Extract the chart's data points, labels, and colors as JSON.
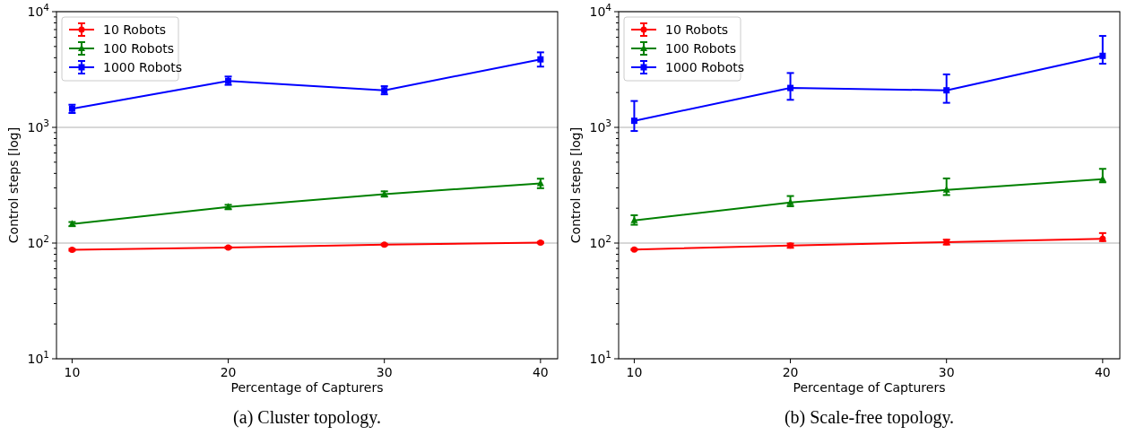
{
  "chart_data": [
    {
      "type": "line",
      "xlabel": "Percentage of Capturers",
      "ylabel": "Control steps [log]",
      "annotations": [
        "(a) Cluster topology."
      ],
      "x": [
        10,
        20,
        30,
        40
      ],
      "xlim": [
        9,
        41.1
      ],
      "xticks": [
        10,
        20,
        30,
        40
      ],
      "ylim": [
        10,
        10000
      ],
      "log": true,
      "grid": "y",
      "legend": "top left",
      "line_style": "solid",
      "yticks": [
        {
          "value": 10,
          "label": "10$^{1}$"
        },
        {
          "value": 20,
          "label": null
        },
        {
          "value": 30,
          "label": null
        },
        {
          "value": 40,
          "label": null
        },
        {
          "value": 50,
          "label": null
        },
        {
          "value": 60,
          "label": null
        },
        {
          "value": 70,
          "label": null
        },
        {
          "value": 80,
          "label": null
        },
        {
          "value": 90,
          "label": null
        },
        {
          "value": 100,
          "label": "10$^{2}$"
        },
        {
          "value": 200,
          "label": null
        },
        {
          "value": 300,
          "label": null
        },
        {
          "value": 400,
          "label": null
        },
        {
          "value": 500,
          "label": null
        },
        {
          "value": 600,
          "label": null
        },
        {
          "value": 700,
          "label": null
        },
        {
          "value": 800,
          "label": null
        },
        {
          "value": 900,
          "label": null
        },
        {
          "value": 1000,
          "label": "10$^{3}$"
        },
        {
          "value": 2000,
          "label": null
        },
        {
          "value": 3000,
          "label": null
        },
        {
          "value": 4000,
          "label": null
        },
        {
          "value": 5000,
          "label": null
        },
        {
          "value": 6000,
          "label": null
        },
        {
          "value": 7000,
          "label": null
        },
        {
          "value": 8000,
          "label": null
        },
        {
          "value": 9000,
          "label": null
        },
        {
          "value": 10000,
          "label": "10$^{4}$"
        }
      ],
      "series": [
        {
          "name": "10 Robots",
          "color": "#ff0000",
          "marker": "circle",
          "values": [
            87.5,
            91.5,
            97,
            101
          ],
          "errors": [
            1.5,
            1.5,
            1.5,
            1.5
          ]
        },
        {
          "name": "100 Robots",
          "color": "#008000",
          "marker": "triangle",
          "values": [
            146,
            205,
            265,
            328
          ],
          "errors": [
            [
              140,
              152
            ],
            [
              196,
              214
            ],
            [
              252,
              280
            ],
            [
              298,
              360
            ]
          ]
        },
        {
          "name": "1000 Robots",
          "color": "#0000ff",
          "marker": "square",
          "values": [
            1450,
            2520,
            2090,
            3870
          ],
          "errors": [
            [
              1330,
              1570
            ],
            [
              2330,
              2750
            ],
            [
              1930,
              2270
            ],
            [
              3350,
              4450
            ]
          ]
        }
      ]
    },
    {
      "type": "line",
      "xlabel": "Percentage of Capturers",
      "ylabel": "Control steps [log]",
      "annotations": [
        "(b) Scale-free topology."
      ],
      "x": [
        10,
        20,
        30,
        40
      ],
      "xlim": [
        9,
        41.1
      ],
      "xticks": [
        10,
        20,
        30,
        40
      ],
      "ylim": [
        10,
        10000
      ],
      "log": true,
      "grid": "y",
      "legend": "top left",
      "line_style": "solid",
      "yticks": [
        {
          "value": 10,
          "label": "10$^{1}$"
        },
        {
          "value": 20,
          "label": null
        },
        {
          "value": 30,
          "label": null
        },
        {
          "value": 40,
          "label": null
        },
        {
          "value": 50,
          "label": null
        },
        {
          "value": 60,
          "label": null
        },
        {
          "value": 70,
          "label": null
        },
        {
          "value": 80,
          "label": null
        },
        {
          "value": 90,
          "label": null
        },
        {
          "value": 100,
          "label": "10$^{2}$"
        },
        {
          "value": 200,
          "label": null
        },
        {
          "value": 300,
          "label": null
        },
        {
          "value": 400,
          "label": null
        },
        {
          "value": 500,
          "label": null
        },
        {
          "value": 600,
          "label": null
        },
        {
          "value": 700,
          "label": null
        },
        {
          "value": 800,
          "label": null
        },
        {
          "value": 900,
          "label": null
        },
        {
          "value": 1000,
          "label": "10$^{3}$"
        },
        {
          "value": 2000,
          "label": null
        },
        {
          "value": 3000,
          "label": null
        },
        {
          "value": 4000,
          "label": null
        },
        {
          "value": 5000,
          "label": null
        },
        {
          "value": 6000,
          "label": null
        },
        {
          "value": 7000,
          "label": null
        },
        {
          "value": 8000,
          "label": null
        },
        {
          "value": 9000,
          "label": null
        },
        {
          "value": 10000,
          "label": "10$^{4}$"
        }
      ],
      "series": [
        {
          "name": "10 Robots",
          "color": "#ff0000",
          "marker": "circle",
          "values": [
            88,
            95,
            102,
            109
          ],
          "errors": [
            1,
            [
              91,
              99
            ],
            [
              97,
              107
            ],
            [
              104,
              122
            ]
          ]
        },
        {
          "name": "100 Robots",
          "color": "#008000",
          "marker": "triangle",
          "values": [
            157,
            224,
            288,
            357
          ],
          "errors": [
            [
              144,
              174
            ],
            [
              208,
              255
            ],
            [
              260,
              362
            ],
            [
              335,
              438
            ]
          ]
        },
        {
          "name": "1000 Robots",
          "color": "#0000ff",
          "marker": "square",
          "values": [
            1140,
            2190,
            2090,
            4150
          ],
          "errors": [
            [
              930,
              1690
            ],
            [
              1730,
              2950
            ],
            [
              1630,
              2870
            ],
            [
              3550,
              6170
            ]
          ]
        }
      ]
    }
  ]
}
